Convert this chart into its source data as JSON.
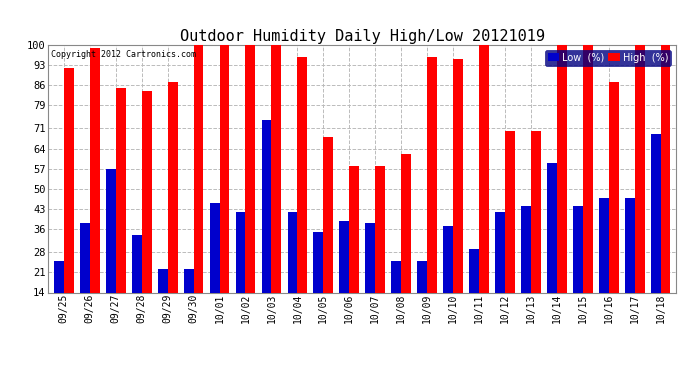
{
  "title": "Outdoor Humidity Daily High/Low 20121019",
  "copyright": "Copyright 2012 Cartronics.com",
  "categories": [
    "09/25",
    "09/26",
    "09/27",
    "09/28",
    "09/29",
    "09/30",
    "10/01",
    "10/02",
    "10/03",
    "10/04",
    "10/05",
    "10/06",
    "10/07",
    "10/08",
    "10/09",
    "10/10",
    "10/11",
    "10/12",
    "10/13",
    "10/14",
    "10/15",
    "10/16",
    "10/17",
    "10/18"
  ],
  "high_values": [
    92,
    99,
    85,
    84,
    87,
    100,
    100,
    100,
    100,
    96,
    68,
    58,
    58,
    62,
    96,
    95,
    100,
    70,
    70,
    100,
    100,
    87,
    100,
    100
  ],
  "low_values": [
    25,
    38,
    57,
    34,
    22,
    22,
    45,
    42,
    74,
    42,
    35,
    39,
    38,
    25,
    25,
    37,
    29,
    42,
    44,
    59,
    44,
    47,
    47,
    69
  ],
  "high_color": "#ff0000",
  "low_color": "#0000cc",
  "bg_color": "#ffffff",
  "grid_color": "#bbbbbb",
  "title_fontsize": 11,
  "ylabel_values": [
    14,
    21,
    28,
    36,
    43,
    50,
    57,
    64,
    71,
    79,
    86,
    93,
    100
  ],
  "ymin": 14,
  "ymax": 100,
  "bar_width": 0.38,
  "legend_low_label": "Low  (%)",
  "legend_high_label": "High  (%)"
}
